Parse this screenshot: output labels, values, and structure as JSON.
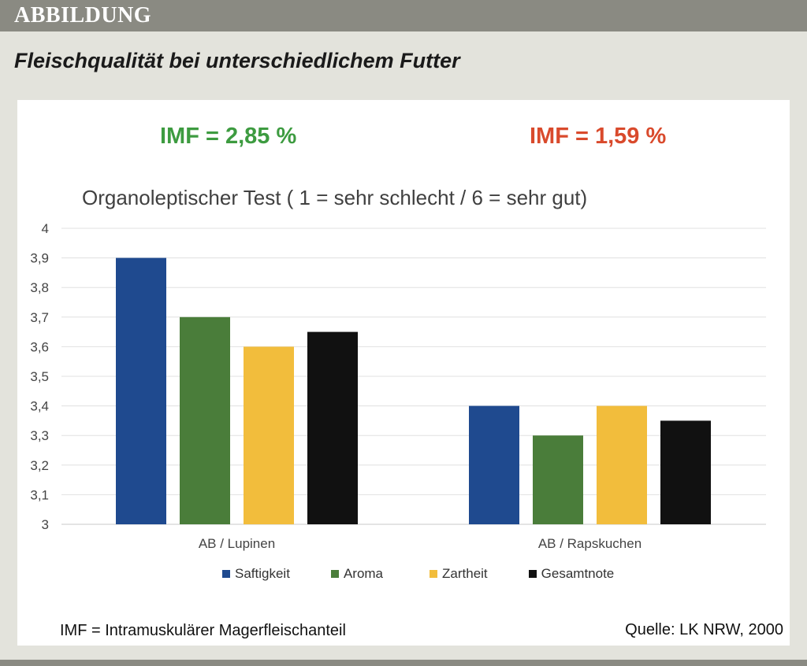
{
  "header": {
    "label": "ABBILDUNG"
  },
  "figure_title": "Fleischqualität bei unterschiedlichem Futter",
  "imf_left": "IMF = 2,85 %",
  "imf_right": "IMF = 1,59 %",
  "footnote": "IMF = Intramuskulärer Magerfleischanteil",
  "source": "Quelle: LK NRW, 2000",
  "colors": {
    "imf_left": "#3d9b40",
    "imf_right": "#d94a2c"
  },
  "chart_data": {
    "type": "bar",
    "title": "Organoleptischer Test ( 1 = sehr schlecht / 6 = sehr gut)",
    "categories": [
      "AB / Lupinen",
      "AB / Rapskuchen"
    ],
    "series": [
      {
        "name": "Saftigkeit",
        "color": "#1f4a8f",
        "values": [
          3.9,
          3.4
        ]
      },
      {
        "name": "Aroma",
        "color": "#4a7d3a",
        "values": [
          3.7,
          3.3
        ]
      },
      {
        "name": "Zartheit",
        "color": "#f2bd3c",
        "values": [
          3.6,
          3.4
        ]
      },
      {
        "name": "Gesamtnote",
        "color": "#111111",
        "values": [
          3.65,
          3.35
        ]
      }
    ],
    "ylim": [
      3,
      4
    ],
    "yticks": [
      "3",
      "3,1",
      "3,2",
      "3,3",
      "3,4",
      "3,5",
      "3,6",
      "3,7",
      "3,8",
      "3,9",
      "4"
    ],
    "grid": true,
    "legend": "bottom"
  }
}
